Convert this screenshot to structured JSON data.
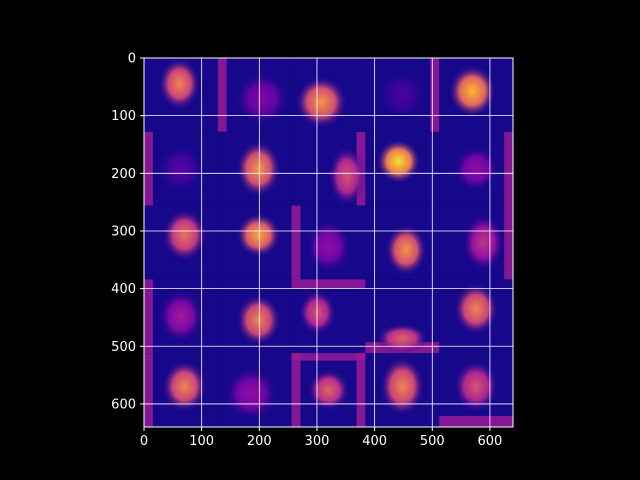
{
  "chart_data": {
    "type": "heatmap",
    "title": "",
    "xlabel": "",
    "ylabel": "",
    "xlim": [
      0,
      640
    ],
    "ylim": [
      640,
      0
    ],
    "y_inverted": true,
    "grid": true,
    "grid_color": "#ffffff",
    "background": "#000000",
    "colormap": "plasma",
    "x_ticks": [
      0,
      100,
      200,
      300,
      400,
      500,
      600
    ],
    "y_ticks": [
      0,
      100,
      200,
      300,
      400,
      500,
      600
    ],
    "x_tick_labels": [
      "0",
      "100",
      "200",
      "300",
      "400",
      "500",
      "600"
    ],
    "y_tick_labels": [
      "0",
      "100",
      "200",
      "300",
      "400",
      "500",
      "600"
    ],
    "mosaic": {
      "rows": 5,
      "cols": 5,
      "tile_size": 128,
      "tiles": [
        [
          {
            "blob": [
              0.48,
              0.35,
              0.28,
              0.35,
              0.7
            ],
            "edge": "none"
          },
          {
            "blob": [
              0.6,
              0.55,
              0.35,
              0.35,
              0.25
            ],
            "edge": "left"
          },
          {
            "blob": [
              0.4,
              0.6,
              0.35,
              0.35,
              0.75
            ],
            "edge": "none"
          },
          {
            "blob": [
              0.5,
              0.5,
              0.3,
              0.3,
              0.12
            ],
            "edge": "right"
          },
          {
            "blob": [
              0.45,
              0.45,
              0.32,
              0.35,
              0.85
            ],
            "edge": "none"
          }
        ],
        [
          {
            "blob": [
              0.5,
              0.5,
              0.3,
              0.3,
              0.15
            ],
            "edge": "left"
          },
          {
            "blob": [
              0.55,
              0.5,
              0.3,
              0.38,
              0.75
            ],
            "edge": "none"
          },
          {
            "blob": [
              0.75,
              0.6,
              0.25,
              0.4,
              0.55
            ],
            "edge": "right"
          },
          {
            "blob": [
              0.45,
              0.4,
              0.3,
              0.3,
              0.95
            ],
            "edge": "none"
          },
          {
            "blob": [
              0.5,
              0.5,
              0.3,
              0.3,
              0.3
            ],
            "edge": "right"
          }
        ],
        [
          {
            "blob": [
              0.55,
              0.4,
              0.3,
              0.35,
              0.65
            ],
            "edge": "none"
          },
          {
            "blob": [
              0.55,
              0.4,
              0.3,
              0.3,
              0.8
            ],
            "edge": "none"
          },
          {
            "blob": [
              0.5,
              0.55,
              0.3,
              0.35,
              0.3
            ],
            "edge": "left"
          },
          {
            "blob": [
              0.55,
              0.6,
              0.28,
              0.35,
              0.75
            ],
            "edge": "none"
          },
          {
            "blob": [
              0.6,
              0.5,
              0.28,
              0.38,
              0.45
            ],
            "edge": "right"
          }
        ],
        [
          {
            "blob": [
              0.5,
              0.5,
              0.3,
              0.35,
              0.35
            ],
            "edge": "left"
          },
          {
            "blob": [
              0.55,
              0.55,
              0.3,
              0.35,
              0.7
            ],
            "edge": "none"
          },
          {
            "blob": [
              0.35,
              0.45,
              0.25,
              0.3,
              0.55
            ],
            "edge": "top"
          },
          {
            "blob": [
              0.5,
              0.8,
              0.35,
              0.2,
              0.6
            ],
            "edge": "bottom"
          },
          {
            "blob": [
              0.5,
              0.4,
              0.3,
              0.35,
              0.7
            ],
            "edge": "none"
          }
        ],
        [
          {
            "blob": [
              0.55,
              0.45,
              0.3,
              0.35,
              0.7
            ],
            "edge": "left"
          },
          {
            "blob": [
              0.45,
              0.55,
              0.35,
              0.35,
              0.3
            ],
            "edge": "none"
          },
          {
            "blob": [
              0.5,
              0.5,
              0.28,
              0.28,
              0.6
            ],
            "edge": "frame"
          },
          {
            "blob": [
              0.5,
              0.45,
              0.3,
              0.4,
              0.7
            ],
            "edge": "none"
          },
          {
            "blob": [
              0.5,
              0.45,
              0.3,
              0.35,
              0.55
            ],
            "edge": "bottom"
          }
        ]
      ]
    }
  }
}
